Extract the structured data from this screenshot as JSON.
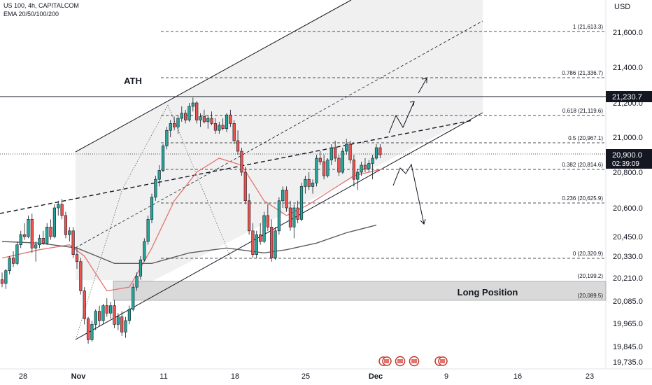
{
  "header": {
    "symbol_line": "US 100, 4h, CAPITALCOM",
    "indicator_line": "EMA 20/50/100/200"
  },
  "currency": "USD",
  "colors": {
    "up": "#26a69a",
    "down": "#ef5350",
    "ema_fast": "#e57373",
    "ema_slow": "#5d5d5d",
    "zone": "#d9d9d9",
    "channel_fill": "#f0f0f0",
    "price_tag": "#131722"
  },
  "chart_data": {
    "type": "candlestick",
    "x_tick_labels": [
      "28",
      "Nov",
      "11",
      "18",
      "25",
      "Dec",
      "9",
      "16",
      "23"
    ],
    "y_tick_labels": [
      "21,600.0",
      "21,400.0",
      "21,200.0",
      "21,000.0",
      "20,800.0",
      "20,600.0",
      "20,450.0",
      "20,330.0",
      "20,210.0",
      "20,085.0",
      "19,965.0",
      "19,845.0",
      "19,735.0"
    ],
    "ath": {
      "label": "ATH",
      "price_label": "21,230.7"
    },
    "current_price": {
      "value": "20,900.0",
      "countdown": "02:39:09"
    },
    "fib_levels": [
      {
        "label": "1 (21,613.3)"
      },
      {
        "label": "0.786 (21,336.7)"
      },
      {
        "label": "0.618 (21,119.6)"
      },
      {
        "label": "0.5 (20,967.1)"
      },
      {
        "label": "0.382 (20,814.6)"
      },
      {
        "label": "0.236 (20,625.9)"
      },
      {
        "label": "0 (20,320.9)"
      }
    ],
    "zone": {
      "label": "Long Position",
      "top_label": "(20,199.2)",
      "bottom_label": "(20,089.5)"
    },
    "candles": [
      [
        20200,
        20240,
        20160,
        20180
      ],
      [
        20180,
        20260,
        20150,
        20250
      ],
      [
        20250,
        20330,
        20230,
        20320
      ],
      [
        20320,
        20360,
        20270,
        20290
      ],
      [
        20290,
        20420,
        20280,
        20400
      ],
      [
        20400,
        20480,
        20380,
        20460
      ],
      [
        20460,
        20520,
        20430,
        20450
      ],
      [
        20450,
        20560,
        20440,
        20540
      ],
      [
        20540,
        20570,
        20350,
        20380
      ],
      [
        20380,
        20420,
        20300,
        20400
      ],
      [
        20400,
        20460,
        20380,
        20440
      ],
      [
        20440,
        20480,
        20400,
        20410
      ],
      [
        20410,
        20520,
        20400,
        20500
      ],
      [
        20500,
        20540,
        20430,
        20450
      ],
      [
        20450,
        20620,
        20440,
        20600
      ],
      [
        20600,
        20640,
        20560,
        20620
      ],
      [
        20620,
        20650,
        20540,
        20560
      ],
      [
        20560,
        20580,
        20440,
        20460
      ],
      [
        20460,
        20500,
        20420,
        20480
      ],
      [
        20480,
        20500,
        20320,
        20340
      ],
      [
        20340,
        20380,
        20260,
        20300
      ],
      [
        20300,
        20320,
        20120,
        20140
      ],
      [
        20140,
        20160,
        19960,
        19990
      ],
      [
        19990,
        20000,
        19860,
        19880
      ],
      [
        19880,
        19980,
        19870,
        19960
      ],
      [
        19960,
        20040,
        19930,
        20030
      ],
      [
        20030,
        20060,
        19950,
        19980
      ],
      [
        19980,
        20070,
        19960,
        20060
      ],
      [
        20060,
        20100,
        20000,
        20020
      ],
      [
        20020,
        20080,
        19990,
        20060
      ],
      [
        20060,
        20090,
        19940,
        19960
      ],
      [
        19960,
        20020,
        19930,
        20000
      ],
      [
        20000,
        20030,
        19900,
        19920
      ],
      [
        19920,
        20000,
        19890,
        19980
      ],
      [
        19980,
        20060,
        19960,
        20040
      ],
      [
        20040,
        20180,
        20030,
        20160
      ],
      [
        20160,
        20240,
        20140,
        20220
      ],
      [
        20220,
        20330,
        20200,
        20310
      ],
      [
        20310,
        20440,
        20300,
        20420
      ],
      [
        20420,
        20560,
        20400,
        20540
      ],
      [
        20540,
        20680,
        20520,
        20660
      ],
      [
        20660,
        20780,
        20640,
        20760
      ],
      [
        20760,
        20840,
        20720,
        20810
      ],
      [
        20810,
        20960,
        20800,
        20950
      ],
      [
        20950,
        21060,
        20930,
        21040
      ],
      [
        21040,
        21100,
        21000,
        21080
      ],
      [
        21080,
        21120,
        21040,
        21060
      ],
      [
        21060,
        21130,
        21020,
        21110
      ],
      [
        21110,
        21180,
        21090,
        21140
      ],
      [
        21140,
        21160,
        21080,
        21100
      ],
      [
        21100,
        21200,
        21090,
        21180
      ],
      [
        21180,
        21230,
        21150,
        21200
      ],
      [
        21200,
        21210,
        21080,
        21100
      ],
      [
        21100,
        21140,
        21060,
        21120
      ],
      [
        21120,
        21160,
        21080,
        21090
      ],
      [
        21090,
        21130,
        21050,
        21110
      ],
      [
        21110,
        21150,
        21070,
        21080
      ],
      [
        21080,
        21110,
        21020,
        21040
      ],
      [
        21040,
        21090,
        21020,
        21070
      ],
      [
        21070,
        21110,
        21040,
        21050
      ],
      [
        21050,
        21140,
        21030,
        21130
      ],
      [
        21130,
        21160,
        21060,
        21080
      ],
      [
        21080,
        21100,
        20960,
        20980
      ],
      [
        20980,
        21040,
        20900,
        20920
      ],
      [
        20920,
        20940,
        20780,
        20800
      ],
      [
        20800,
        20830,
        20620,
        20640
      ],
      [
        20640,
        20680,
        20460,
        20480
      ],
      [
        20480,
        20520,
        20320,
        20340
      ],
      [
        20340,
        20480,
        20320,
        20460
      ],
      [
        20460,
        20520,
        20400,
        20420
      ],
      [
        20420,
        20580,
        20410,
        20560
      ],
      [
        20560,
        20620,
        20480,
        20500
      ],
      [
        20500,
        20540,
        20300,
        20320
      ],
      [
        20320,
        20500,
        20310,
        20480
      ],
      [
        20480,
        20660,
        20460,
        20640
      ],
      [
        20640,
        20720,
        20600,
        20700
      ],
      [
        20700,
        20720,
        20580,
        20600
      ],
      [
        20600,
        20640,
        20480,
        20500
      ],
      [
        20500,
        20620,
        20440,
        20600
      ],
      [
        20600,
        20640,
        20520,
        20540
      ],
      [
        20540,
        20740,
        20530,
        20720
      ],
      [
        20720,
        20780,
        20680,
        20760
      ],
      [
        20760,
        20800,
        20700,
        20720
      ],
      [
        20720,
        20760,
        20680,
        20740
      ],
      [
        20740,
        20900,
        20720,
        20880
      ],
      [
        20880,
        20920,
        20840,
        20860
      ],
      [
        20860,
        20900,
        20760,
        20780
      ],
      [
        20780,
        20880,
        20770,
        20870
      ],
      [
        20870,
        20960,
        20840,
        20940
      ],
      [
        20940,
        20980,
        20860,
        20880
      ],
      [
        20880,
        20900,
        20780,
        20800
      ],
      [
        20800,
        20940,
        20790,
        20920
      ],
      [
        20920,
        20990,
        20900,
        20960
      ],
      [
        20960,
        20980,
        20850,
        20870
      ],
      [
        20870,
        20900,
        20720,
        20760
      ],
      [
        20760,
        20820,
        20700,
        20800
      ],
      [
        20800,
        20860,
        20780,
        20840
      ],
      [
        20840,
        20880,
        20800,
        20820
      ],
      [
        20820,
        20870,
        20800,
        20850
      ],
      [
        20850,
        20900,
        20760,
        20880
      ],
      [
        20880,
        20960,
        20870,
        20940
      ],
      [
        20940,
        20960,
        20880,
        20900
      ]
    ],
    "ema_fast": [
      [
        0,
        20320
      ],
      [
        10,
        20370
      ],
      [
        18,
        20400
      ],
      [
        22,
        20330
      ],
      [
        28,
        20140
      ],
      [
        34,
        20160
      ],
      [
        40,
        20380
      ],
      [
        46,
        20640
      ],
      [
        52,
        20800
      ],
      [
        58,
        20880
      ],
      [
        64,
        20840
      ],
      [
        70,
        20640
      ],
      [
        76,
        20560
      ],
      [
        82,
        20620
      ],
      [
        88,
        20700
      ],
      [
        94,
        20780
      ],
      [
        102,
        20820
      ]
    ],
    "ema_slow": [
      [
        0,
        20420
      ],
      [
        10,
        20410
      ],
      [
        20,
        20380
      ],
      [
        30,
        20290
      ],
      [
        40,
        20290
      ],
      [
        50,
        20350
      ],
      [
        60,
        20380
      ],
      [
        70,
        20350
      ],
      [
        76,
        20370
      ],
      [
        84,
        20410
      ],
      [
        92,
        20470
      ],
      [
        100,
        20510
      ]
    ]
  }
}
